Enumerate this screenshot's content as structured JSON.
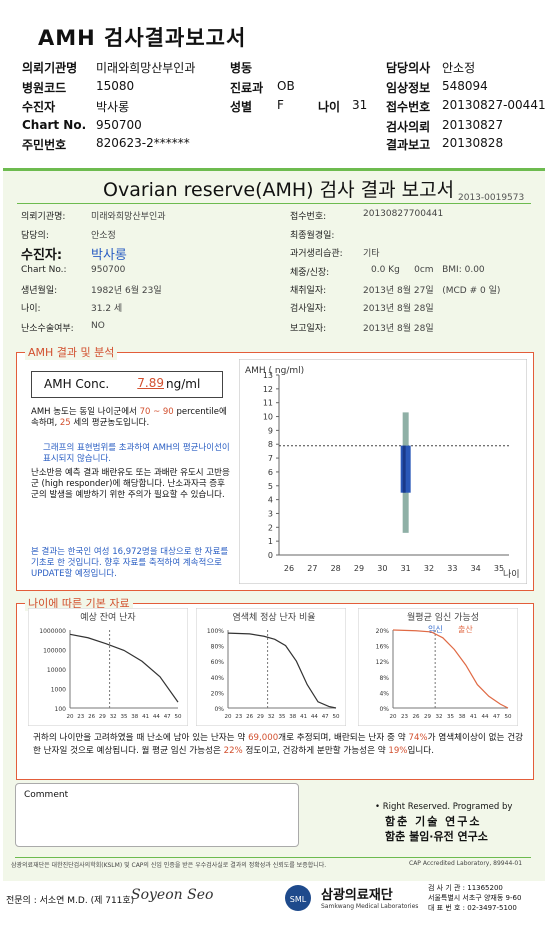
{
  "title": "AMH 검사결과보고서",
  "header": {
    "left": [
      {
        "k": "의뢰기관명",
        "v": "미래와희망산부인과"
      },
      {
        "k": "병원코드",
        "v": "15080"
      },
      {
        "k": "수진자",
        "v": "박사롱"
      },
      {
        "k": "Chart No.",
        "v": "950700"
      },
      {
        "k": "주민번호",
        "v": "820623-2******"
      }
    ],
    "mid": [
      {
        "k": "병동",
        "v": ""
      },
      {
        "k": "진료과",
        "v": "OB"
      },
      {
        "k": "성별",
        "v": "F"
      }
    ],
    "age_label": "나이",
    "age_value": "31",
    "right": [
      {
        "k": "담당의사",
        "v": "안소정"
      },
      {
        "k": "임상정보",
        "v": "548094"
      },
      {
        "k": "접수번호",
        "v": "20130827-00441"
      },
      {
        "k": "검사의뢰",
        "v": "20130827"
      },
      {
        "k": "결과보고",
        "v": "20130828"
      }
    ]
  },
  "report": {
    "title": "Ovarian reserve(AMH) 검사 결과 보고서",
    "code": "2013-0019573",
    "left_fields": [
      {
        "k": "의뢰기관명:",
        "v": "미래와희망산부인과"
      },
      {
        "k": "담당의:",
        "v": "안소정"
      },
      {
        "k": "수진자:",
        "v": "박사롱"
      },
      {
        "k": "Chart No.:",
        "v": "950700"
      },
      {
        "k": "생년월일:",
        "v": "1982년 6월 23일"
      },
      {
        "k": "나이:",
        "v": "31.2 세"
      },
      {
        "k": "난소수술여부:",
        "v": "NO"
      }
    ],
    "right_fields": [
      {
        "k": "접수번호:",
        "v": "20130827700441"
      },
      {
        "k": "최종월경일:",
        "v": ""
      },
      {
        "k": "과거생리습관:",
        "v": "기타"
      },
      {
        "k": "체중/신장:",
        "v": "0.0 Kg     0cm   BMI: 0.00"
      },
      {
        "k": "채취일자:",
        "v": "2013년 8월 27일   (MCD # 0 일)"
      },
      {
        "k": "검사일자:",
        "v": "2013년 8월 28일"
      },
      {
        "k": "보고일자:",
        "v": "2013년 8월 28일"
      }
    ],
    "amh_section": {
      "title": "AMH 결과 및 분석",
      "conc_label": "AMH Conc.",
      "conc_value": "7.89",
      "conc_unit": "ng/ml",
      "text1a": "AMH 농도는 동일 나이군에서",
      "text1b": "70 ~ 90",
      "text1c": "percentile에 속하며,",
      "text1d": "25",
      "text1e": "세의 평균농도입니다.",
      "text2": "그래프의 표현범위를 초과하여 AMH의 평균나이선이 표시되지 않습니다.",
      "text3": "난소반응 예측 결과 배란유도 또는 과배란 유도시 고반응군 (high responder)에 해당합니다. 난소과자극 증후군의 발생을 예방하기 위한 주의가 필요할 수 있습니다.",
      "text4": "본 결과는 한국인 여성 16,972명을 대상으로 한 자료를 기초로 한 것입니다. 향후 자료를 축적하여 계속적으로 UPDATE할 예정입니다."
    },
    "chart_data": [
      {
        "type": "box",
        "ylabel": "AMH ( ng/ml)",
        "xlabel": "나이",
        "x_ticks": [
          "26",
          "27",
          "28",
          "29",
          "30",
          "31",
          "32",
          "33",
          "34",
          "35"
        ],
        "y_ticks": [
          "0",
          "1",
          "2",
          "3",
          "4",
          "5",
          "6",
          "7",
          "8",
          "9",
          "10",
          "11",
          "12",
          "13"
        ],
        "ylim": [
          0,
          13
        ],
        "reference_line": 7.89,
        "box": {
          "x": 31,
          "whisker_low": 1.6,
          "whisker_high": 10.3,
          "q1": 4.5,
          "median": null,
          "q3": 7.9
        }
      },
      {
        "type": "line",
        "title": "예상 잔여 난자",
        "x_ticks": [
          "20",
          "23",
          "26",
          "29",
          "32",
          "35",
          "38",
          "41",
          "44",
          "47",
          "50"
        ],
        "y_ticks": [
          "100",
          "1000",
          "10000",
          "100000",
          "1000000"
        ],
        "y_scale": "log",
        "x": [
          20,
          25,
          30,
          35,
          40,
          45,
          50
        ],
        "y": [
          600000,
          400000,
          200000,
          90000,
          25000,
          4000,
          200
        ]
      },
      {
        "type": "line",
        "title": "염색체 정상 난자 비율",
        "x_ticks": [
          "20",
          "23",
          "26",
          "29",
          "32",
          "35",
          "38",
          "41",
          "44",
          "47",
          "50"
        ],
        "y_ticks": [
          "0%",
          "20%",
          "40%",
          "60%",
          "80%",
          "100%"
        ],
        "x": [
          20,
          26,
          30,
          33,
          36,
          39,
          42,
          45,
          48,
          50
        ],
        "y": [
          96,
          95,
          92,
          88,
          80,
          60,
          30,
          8,
          2,
          0
        ]
      },
      {
        "type": "line",
        "title": "월평균 임신 가능성",
        "legend": [
          "임신",
          "출산"
        ],
        "x_ticks": [
          "20",
          "23",
          "26",
          "29",
          "32",
          "35",
          "38",
          "41",
          "44",
          "47",
          "50"
        ],
        "y_ticks": [
          "0%",
          "4%",
          "8%",
          "12%",
          "16%",
          "20%"
        ],
        "x": [
          20,
          26,
          30,
          33,
          36,
          39,
          42,
          45,
          48,
          50
        ],
        "y": [
          20,
          19.8,
          19.5,
          18,
          15,
          11,
          6,
          3,
          1,
          0
        ]
      }
    ],
    "age_section": {
      "title": "나이에 따른 기본 자료",
      "summary": "귀하의 나이만을 고려하였을 때 난소에 남아 있는 난자는 약 69,000개로 추정되며, 배란되는 난자 중 약 74%가 염색체이상이 없는 건강한 난자일 것으로 예상됩니다. 월 평균 임신 가능성은 22% 정도이고, 건강하게 분만할 가능성은 약 19%입니다.",
      "n_eggs": "69,000",
      "pct_normal": "74%",
      "pct_preg": "22%",
      "pct_birth": "19%"
    },
    "comment_label": "Comment",
    "rights": "• Right Reserved. Programed by",
    "inst1": "함춘 기술 연구소",
    "inst2": "함춘 불임·유전 연구소",
    "footer_note": "삼광의료재단은 대한진단검사의학회(KSLM) 및 CAP의 신임 인증을 받은 우수검사실로 결과의 정확성과 신뢰도를 보증합니다.",
    "cap": "CAP Accredited Laboratory, 89944-01",
    "doctor": "전문의 : 서소연 M.D. (제 711호)",
    "org": "삼광의료재단",
    "org_en": "Samkwang Medical Laboratories",
    "contact1": "검 사 기 관 : 11365200",
    "contact2": "서울특별시 서초구 양재동 9-60",
    "contact3": "대 표 번 호 : 02-3497-5100"
  }
}
